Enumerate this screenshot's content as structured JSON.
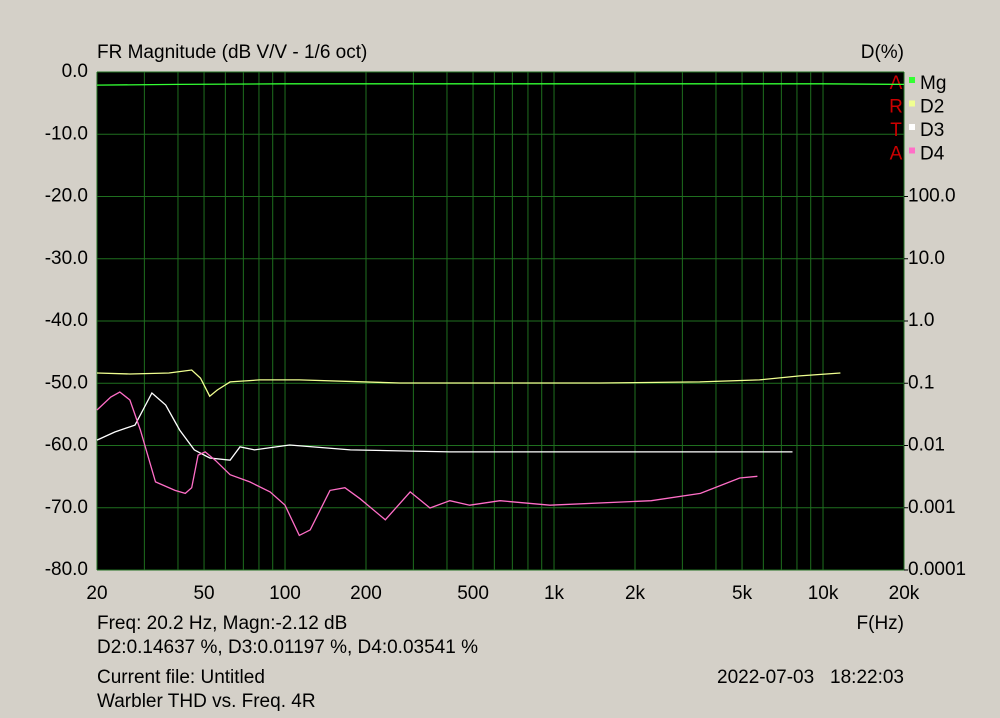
{
  "chart_data": {
    "type": "line",
    "title": "FR Magnitude (dB V/V - 1/6 oct)",
    "y2_label": "D(%)",
    "x_label": "F(Hz)",
    "watermark_letters": [
      "A",
      "R",
      "T",
      "A"
    ],
    "cursor_lines": [
      "Freq: 20.2 Hz, Magn:-2.12 dB",
      "D2:0.14637 %, D3:0.01197 %, D4:0.03541 %"
    ],
    "file_lines": [
      "Current file: Untitled",
      "Warbler THD vs. Freq. 4R"
    ],
    "timestamp": "2022-07-03   18:22:03",
    "xscale": "log",
    "xlim": [
      20,
      20000
    ],
    "xticks": [
      20,
      50,
      100,
      200,
      500,
      {
        "value": 1000,
        "label": "1k"
      },
      {
        "value": 2000,
        "label": "2k"
      },
      {
        "value": 5000,
        "label": "5k"
      },
      {
        "value": 10000,
        "label": "10k"
      },
      {
        "value": 20000,
        "label": "20k"
      }
    ],
    "x_minor_ticks": [
      30,
      40,
      60,
      70,
      80,
      90,
      300,
      400,
      600,
      700,
      800,
      900,
      3000,
      4000,
      6000,
      7000,
      8000,
      9000
    ],
    "ylim": [
      -80,
      0
    ],
    "yticks": [
      {
        "value": 0,
        "label": "0.0"
      },
      {
        "value": -10,
        "label": "-10.0"
      },
      {
        "value": -20,
        "label": "-20.0"
      },
      {
        "value": -30,
        "label": "-30.0"
      },
      {
        "value": -40,
        "label": "-40.0"
      },
      {
        "value": -50,
        "label": "-50.0"
      },
      {
        "value": -60,
        "label": "-60.0"
      },
      {
        "value": -70,
        "label": "-70.0"
      },
      {
        "value": -80,
        "label": "-80.0"
      }
    ],
    "y2scale": "log",
    "y2lim": [
      0.0001,
      10000
    ],
    "y2ticks": [
      {
        "value": 100,
        "label": "100.0"
      },
      {
        "value": 10,
        "label": "10.0"
      },
      {
        "value": 1,
        "label": "1.0"
      },
      0.1,
      0.01,
      0.001,
      0.0001
    ],
    "grid": true,
    "legend": "top-right",
    "series": [
      {
        "name": "Mg",
        "color": "#33ff33",
        "x": [
          20,
          40,
          100,
          1000,
          10000,
          20000
        ],
        "values": [
          -2.1,
          -2.0,
          -1.9,
          -1.9,
          -1.9,
          -2.0
        ]
      },
      {
        "name": "D2",
        "color": "#f0ff90",
        "axis": "y2",
        "x": [
          20,
          26.5,
          37,
          45,
          48.5,
          52.5,
          56,
          62.5,
          80.5,
          113,
          267,
          629,
          1480,
          3480,
          5800,
          8200,
          11600
        ],
        "values": [
          0.146,
          0.141,
          0.146,
          0.163,
          0.121,
          0.062,
          0.078,
          0.105,
          0.113,
          0.113,
          0.101,
          0.101,
          0.101,
          0.105,
          0.113,
          0.131,
          0.146
        ]
      },
      {
        "name": "D3",
        "color": "#ffffff",
        "axis": "y2",
        "x": [
          20,
          23.3,
          27.7,
          32,
          36,
          40.6,
          46,
          52.5,
          62.5,
          68,
          77,
          104,
          175,
          410,
          965,
          2300,
          7700
        ],
        "values": [
          0.0122,
          0.0165,
          0.0213,
          0.0697,
          0.0448,
          0.0177,
          0.0085,
          0.0063,
          0.0058,
          0.0095,
          0.0085,
          0.0102,
          0.0085,
          0.0079,
          0.0079,
          0.0079,
          0.0079
        ]
      },
      {
        "name": "D4",
        "color": "#ff6ec7",
        "axis": "y2",
        "x": [
          20,
          22.5,
          24.3,
          26.5,
          29,
          33,
          39,
          42.6,
          45,
          47.5,
          50.5,
          55,
          62.5,
          74,
          88,
          100,
          113,
          124,
          147,
          167,
          190,
          236,
          292,
          346,
          410,
          486,
          630,
          965,
          2300,
          3500,
          4900,
          5700
        ],
        "values": [
          0.0372,
          0.0601,
          0.0723,
          0.0538,
          0.0177,
          0.0026,
          0.0019,
          0.0017,
          0.0021,
          0.007,
          0.0079,
          0.0058,
          0.0034,
          0.0026,
          0.0018,
          0.0011,
          0.00036,
          0.00044,
          0.0019,
          0.0021,
          0.0014,
          0.00064,
          0.0018,
          0.00099,
          0.0013,
          0.0011,
          0.0013,
          0.0011,
          0.0013,
          0.0017,
          0.003,
          0.0032
        ]
      }
    ]
  }
}
